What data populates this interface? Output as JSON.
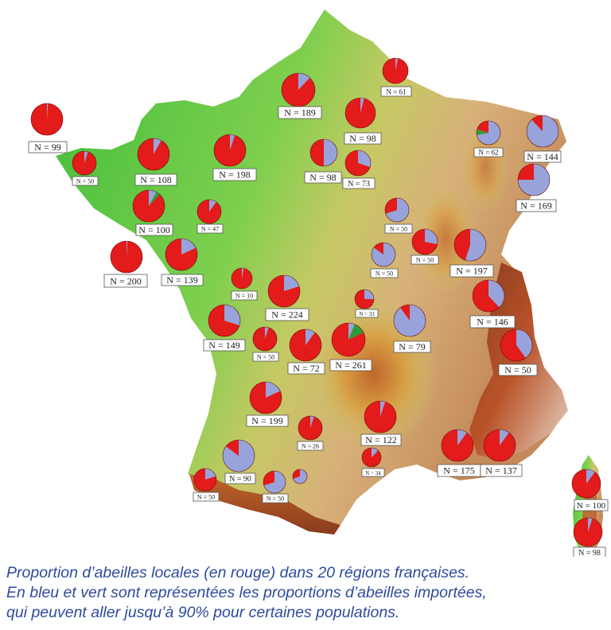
{
  "colors": {
    "local": "#e31b1b",
    "imported_blue": "#98a3db",
    "imported_green": "#2f9a3c",
    "land_low": "#3fbe3b",
    "land_mid": "#c6c964",
    "land_high": "#c0662a",
    "peaks": "#8a3a1e",
    "sea": "#ffffff",
    "label_border": "#555555"
  },
  "caption": {
    "line1": "Proportion d’abeilles locales (en rouge) dans 20 régions françaises.",
    "line2": "En bleu et vert sont représentées les proportions d’abeilles importées,",
    "line3": "qui peuvent aller jusqu’à 90% pour certaines populations."
  },
  "sites": [
    {
      "label": "N = 99",
      "red": 0.99,
      "blue": 0.01,
      "green": 0
    },
    {
      "label": "N = 50",
      "red": 0.95,
      "blue": 0.05,
      "green": 0
    },
    {
      "label": "N = 108",
      "red": 0.92,
      "blue": 0.08,
      "green": 0
    },
    {
      "label": "N = 100",
      "red": 0.88,
      "blue": 0.08,
      "green": 0.04
    },
    {
      "label": "N = 200",
      "red": 0.99,
      "blue": 0.01,
      "green": 0
    },
    {
      "label": "N = 189",
      "red": 0.88,
      "blue": 0.12,
      "green": 0
    },
    {
      "label": "N = 61",
      "red": 0.97,
      "blue": 0.03,
      "green": 0
    },
    {
      "label": "N = 198",
      "red": 0.95,
      "blue": 0.05,
      "green": 0
    },
    {
      "label": "N = 47",
      "red": 0.9,
      "blue": 0.1,
      "green": 0
    },
    {
      "label": "N = 139",
      "red": 0.82,
      "blue": 0.18,
      "green": 0
    },
    {
      "label": "N = 10",
      "red": 0.97,
      "blue": 0.03,
      "green": 0
    },
    {
      "label": "N = 98",
      "red": 0.96,
      "blue": 0.04,
      "green": 0
    },
    {
      "label": "N = 98",
      "red": 0.5,
      "blue": 0.5,
      "green": 0
    },
    {
      "label": "N = 73",
      "red": 0.7,
      "blue": 0.3,
      "green": 0
    },
    {
      "label": "N = 62",
      "red": 0.2,
      "blue": 0.72,
      "green": 0.08
    },
    {
      "label": "N = 144",
      "red": 0.12,
      "blue": 0.88,
      "green": 0
    },
    {
      "label": "N = 169",
      "red": 0.25,
      "blue": 0.75,
      "green": 0
    },
    {
      "label": "N = 50",
      "red": 0.3,
      "blue": 0.7,
      "green": 0
    },
    {
      "label": "N = 50",
      "red": 0.72,
      "blue": 0.28,
      "green": 0
    },
    {
      "label": "N = 50",
      "red": 0.15,
      "blue": 0.85,
      "green": 0
    },
    {
      "label": "N = 197",
      "red": 0.45,
      "blue": 0.55,
      "green": 0
    },
    {
      "label": "N = 224",
      "red": 0.8,
      "blue": 0.2,
      "green": 0
    },
    {
      "label": "N = 33",
      "red": 0.75,
      "blue": 0.25,
      "green": 0
    },
    {
      "label": "N = 146",
      "red": 0.62,
      "blue": 0.38,
      "green": 0
    },
    {
      "label": "N = 149",
      "red": 0.7,
      "blue": 0.3,
      "green": 0
    },
    {
      "label": "N = 50",
      "red": 0.95,
      "blue": 0.05,
      "green": 0
    },
    {
      "label": "N = 72",
      "red": 0.9,
      "blue": 0.1,
      "green": 0
    },
    {
      "label": "N = 261",
      "red": 0.82,
      "blue": 0.06,
      "green": 0.12
    },
    {
      "label": "N = 79",
      "red": 0.1,
      "blue": 0.9,
      "green": 0
    },
    {
      "label": "N = 50",
      "red": 0.6,
      "blue": 0.4,
      "green": 0
    },
    {
      "label": "N = 199",
      "red": 0.82,
      "blue": 0.18,
      "green": 0
    },
    {
      "label": "N = 26",
      "red": 0.95,
      "blue": 0.05,
      "green": 0
    },
    {
      "label": "N = 122",
      "red": 0.95,
      "blue": 0.05,
      "green": 0
    },
    {
      "label": "N = 34",
      "red": 0.88,
      "blue": 0.12,
      "green": 0
    },
    {
      "label": "N = 175",
      "red": 0.9,
      "blue": 0.1,
      "green": 0
    },
    {
      "label": "N = 137",
      "red": 0.9,
      "blue": 0.1,
      "green": 0
    },
    {
      "label": "N = 90",
      "red": 0.15,
      "blue": 0.85,
      "green": 0
    },
    {
      "label": "N = 50",
      "red": 0.8,
      "blue": 0.2,
      "green": 0
    },
    {
      "label": "N = 50",
      "red": 0.3,
      "blue": 0.7,
      "green": 0
    },
    {
      "label": "N = 100",
      "red": 0.9,
      "blue": 0.1,
      "green": 0
    },
    {
      "label": "N = 98",
      "red": 0.95,
      "blue": 0.05,
      "green": 0
    }
  ]
}
